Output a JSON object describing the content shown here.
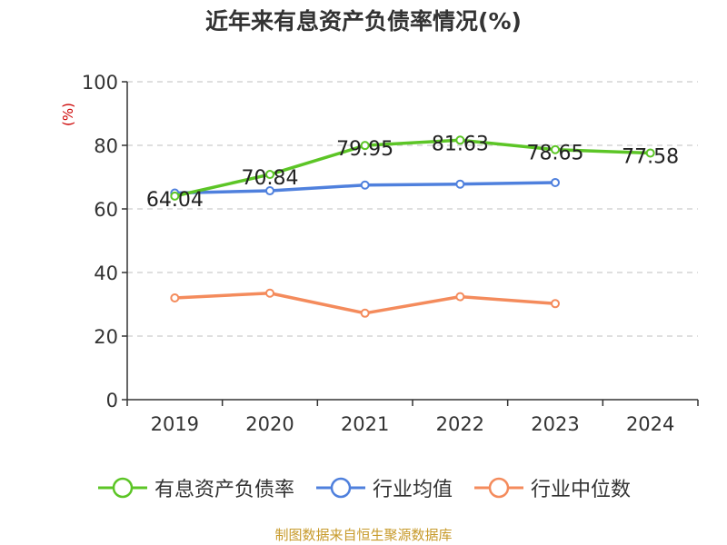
{
  "chart_data": {
    "type": "line",
    "title": "近年来有息资产负债率情况(%)",
    "ylabel": "(%)",
    "xlabel": "",
    "categories": [
      "2019",
      "2020",
      "2021",
      "2022",
      "2023",
      "2024"
    ],
    "ylim": [
      0,
      100
    ],
    "yticks": [
      0,
      20,
      40,
      60,
      80,
      100
    ],
    "grid": true,
    "legend_position": "bottom",
    "series": [
      {
        "name": "有息资产负债率",
        "color": "#5cc526",
        "values": [
          64.04,
          70.84,
          79.95,
          81.63,
          78.65,
          77.58
        ],
        "data_labels": [
          "64.04",
          "70.84",
          "79.95",
          "81.63",
          "78.65",
          "77.58"
        ]
      },
      {
        "name": "行业均值",
        "color": "#4f80dd",
        "values": [
          65,
          65.7,
          67.5,
          67.8,
          68.3,
          null
        ]
      },
      {
        "name": "行业中位数",
        "color": "#f48b5c",
        "values": [
          32,
          33.5,
          27.2,
          32.4,
          30.2,
          null
        ]
      }
    ]
  },
  "source_text": "制图数据来自恒生聚源数据库"
}
